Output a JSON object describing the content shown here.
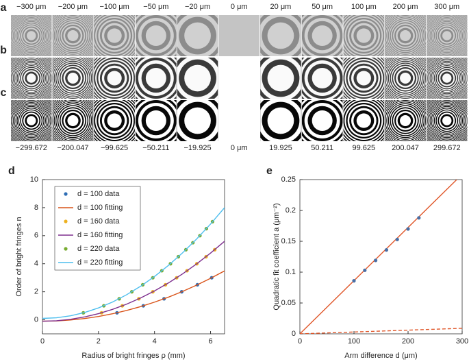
{
  "image_grid": {
    "row_labels": [
      "a",
      "b",
      "c"
    ],
    "column_labels": [
      "−300 μm",
      "−200 μm",
      "−100 μm",
      "−50 μm",
      "−20 μm",
      "0 μm",
      "20 μm",
      "50 μm",
      "100 μm",
      "200 μm",
      "300 μm"
    ],
    "bottom_labels": [
      "−299.672",
      "−200.047",
      "−99.625",
      "−50.211",
      "−19.925",
      "0 μm",
      "19.925",
      "50.211",
      "99.625",
      "200.047",
      "299.672"
    ]
  },
  "chart_data": [
    {
      "type": "scatter-line",
      "panel": "d",
      "x_label": "Radius of bright fringes ρ (mm)",
      "y_label": "Order of bright fringes n",
      "xlim": [
        0,
        6.5
      ],
      "xticks": [
        0,
        2,
        4,
        6
      ],
      "ylim": [
        -1,
        10
      ],
      "yticks": [
        0,
        2,
        4,
        6,
        8,
        10
      ],
      "legend": "upper left",
      "series": [
        {
          "name": "d = 100 data",
          "color": "#2e6db4",
          "style": "markers",
          "x": [
            2.66,
            3.6,
            4.34,
            4.97,
            5.53,
            6.04
          ],
          "values": [
            0.5,
            1,
            1.5,
            2,
            2.5,
            3
          ]
        },
        {
          "name": "d = 100 fitting",
          "color": "#d95319",
          "style": "line",
          "x": [
            0,
            0.5,
            1,
            1.5,
            2,
            2.5,
            3,
            3.5,
            4,
            4.5,
            5,
            5.5,
            6,
            6.5
          ],
          "values": [
            -0.1,
            -0.08,
            -0.015,
            0.09,
            0.24,
            0.43,
            0.665,
            0.94,
            1.26,
            1.62,
            2.025,
            2.47,
            2.96,
            3.49
          ]
        },
        {
          "name": "d = 160 data",
          "color": "#edb120",
          "style": "markers",
          "x": [
            2.11,
            2.85,
            3.44,
            3.94,
            4.39,
            4.79,
            5.16,
            5.51,
            5.84,
            6.15
          ],
          "values": [
            0.5,
            1,
            1.5,
            2,
            2.5,
            3,
            3.5,
            4,
            4.5,
            5
          ]
        },
        {
          "name": "d = 160 fitting",
          "color": "#7e2f8e",
          "style": "line",
          "x": [
            0,
            0.5,
            1,
            1.5,
            2,
            2.5,
            3,
            3.5,
            4,
            4.5,
            5,
            5.5,
            6,
            6.5
          ],
          "values": [
            -0.1,
            -0.066,
            0.035,
            0.204,
            0.44,
            0.744,
            1.115,
            1.554,
            2.06,
            2.634,
            3.275,
            3.984,
            4.76,
            5.604
          ]
        },
        {
          "name": "d = 220 data",
          "color": "#77ac30",
          "style": "markers",
          "x": [
            1.46,
            2.19,
            2.74,
            3.19,
            3.58,
            3.94,
            4.26,
            4.57,
            4.85,
            5.12,
            5.37,
            5.62,
            5.85,
            6.07
          ],
          "values": [
            0.5,
            1,
            1.5,
            2,
            2.5,
            3,
            3.5,
            4,
            4.5,
            5,
            5.5,
            6,
            6.5,
            7
          ]
        },
        {
          "name": "d = 220 fitting",
          "color": "#4dbeee",
          "style": "line",
          "x": [
            0,
            0.5,
            1,
            1.5,
            2,
            2.5,
            3,
            3.5,
            4,
            4.5,
            5,
            5.5,
            6,
            6.5
          ],
          "values": [
            0.1,
            0.147,
            0.287,
            0.521,
            0.848,
            1.269,
            1.783,
            2.391,
            3.092,
            3.887,
            4.775,
            5.757,
            6.832,
            8.001
          ]
        }
      ]
    },
    {
      "type": "scatter-line",
      "panel": "e",
      "x_label": "Arm difference d (μm)",
      "y_label": "Quadratic fit coefficient a (μm⁻²)",
      "xlim": [
        0,
        300
      ],
      "xticks": [
        0,
        100,
        200,
        300
      ],
      "ylim": [
        0,
        0.25
      ],
      "yticks": [
        0,
        0.05,
        0.1,
        0.15,
        0.2,
        0.25
      ],
      "series": [
        {
          "color": "#e0572a",
          "style": "line",
          "x": [
            0,
            290
          ],
          "values": [
            0,
            0.25
          ]
        },
        {
          "color": "#e0572a",
          "style": "dashed",
          "x": [
            0,
            300
          ],
          "values": [
            0,
            0.009
          ]
        },
        {
          "color": "#4a6fa5",
          "style": "markers",
          "x": [
            100,
            120,
            140,
            160,
            180,
            200,
            220
          ],
          "values": [
            0.086,
            0.103,
            0.119,
            0.136,
            0.153,
            0.17,
            0.188
          ]
        }
      ]
    }
  ]
}
